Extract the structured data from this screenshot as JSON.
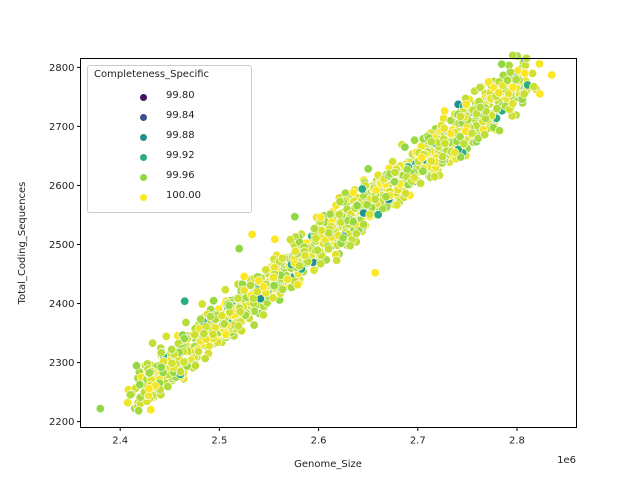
{
  "chart_data": {
    "type": "scatter",
    "title": "",
    "xlabel": "Genome_Size",
    "ylabel": "Total_Coding_Sequences",
    "x_offset_label": "1e6",
    "xlim": [
      2.36,
      2.86
    ],
    "ylim": [
      2190,
      2815
    ],
    "x_ticks": [
      2.4,
      2.5,
      2.6,
      2.7,
      2.8
    ],
    "x_tick_labels": [
      "2.4",
      "2.5",
      "2.6",
      "2.7",
      "2.8"
    ],
    "y_ticks": [
      2200,
      2300,
      2400,
      2500,
      2600,
      2700,
      2800
    ],
    "y_tick_labels": [
      "2200",
      "2300",
      "2400",
      "2500",
      "2600",
      "2700",
      "2800"
    ],
    "grid": false,
    "hue": "Completeness_Specific",
    "legend": {
      "title": "Completeness_Specific",
      "position": "upper left",
      "entries": [
        {
          "label": "99.80",
          "color": "#471164"
        },
        {
          "label": "99.84",
          "color": "#3b528b"
        },
        {
          "label": "99.88",
          "color": "#21908d"
        },
        {
          "label": "99.92",
          "color": "#27ad81"
        },
        {
          "label": "99.96",
          "color": "#8fd744"
        },
        {
          "label": "100.00",
          "color": "#fde725"
        }
      ]
    },
    "trend": {
      "x_start": 2.42,
      "y_start": 2245,
      "x_end": 2.81,
      "y_end": 2775,
      "spread_y": 45,
      "n_points": 1400
    },
    "outliers": [
      {
        "x": 2.38,
        "y": 2222,
        "hue": "99.96"
      },
      {
        "x": 2.465,
        "y": 2404,
        "hue": "99.92"
      },
      {
        "x": 2.52,
        "y": 2493,
        "hue": "99.96"
      },
      {
        "x": 2.533,
        "y": 2517,
        "hue": "100.00"
      },
      {
        "x": 2.556,
        "y": 2509,
        "hue": "100.00"
      },
      {
        "x": 2.576,
        "y": 2547,
        "hue": "99.96"
      },
      {
        "x": 2.602,
        "y": 2546,
        "hue": "100.00"
      },
      {
        "x": 2.635,
        "y": 2588,
        "hue": "100.00"
      },
      {
        "x": 2.65,
        "y": 2628,
        "hue": "99.96"
      },
      {
        "x": 2.687,
        "y": 2665,
        "hue": "99.96"
      },
      {
        "x": 2.704,
        "y": 2647,
        "hue": "100.00"
      },
      {
        "x": 2.727,
        "y": 2726,
        "hue": "100.00"
      },
      {
        "x": 2.796,
        "y": 2766,
        "hue": "100.00"
      },
      {
        "x": 2.808,
        "y": 2790,
        "hue": "100.00"
      },
      {
        "x": 2.835,
        "y": 2787,
        "hue": "100.00"
      },
      {
        "x": 2.823,
        "y": 2755,
        "hue": "100.00"
      },
      {
        "x": 2.657,
        "y": 2452,
        "hue": "100.00"
      },
      {
        "x": 2.429,
        "y": 2256,
        "hue": "100.00"
      },
      {
        "x": 2.525,
        "y": 2446,
        "hue": "100.00"
      }
    ],
    "hue_mix": {
      "100.00": 0.45,
      "99.96": 0.5,
      "99.92": 0.04,
      "99.88": 0.01
    }
  }
}
